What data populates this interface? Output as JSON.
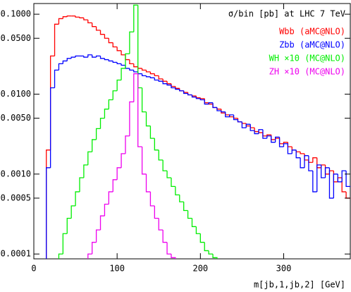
{
  "chart_data": {
    "type": "histogram",
    "title": "σ/bin [pb]  at LHC 7 TeV",
    "x_label": "m[jb,1,jb,2] [GeV]",
    "log_y": true,
    "xlim": [
      0,
      380
    ],
    "ylim": [
      8.7e-05,
      0.136
    ],
    "xticks": [
      0,
      100,
      200,
      300
    ],
    "yticks": [
      0.0001,
      0.0005,
      {
        "value": 0.001,
        "label": "0.0010"
      },
      {
        "value": 0.005,
        "label": "0.0050"
      },
      {
        "value": 0.01,
        "label": "0.0100"
      },
      {
        "value": 0.05,
        "label": "0.0500"
      },
      {
        "value": 0.1,
        "label": "0.1000"
      }
    ],
    "bins": [
      0,
      5,
      10,
      15,
      20,
      25,
      30,
      35,
      40,
      45,
      50,
      55,
      60,
      65,
      70,
      75,
      80,
      85,
      90,
      95,
      100,
      105,
      110,
      115,
      120,
      125,
      130,
      135,
      140,
      145,
      150,
      155,
      160,
      165,
      170,
      175,
      180,
      185,
      190,
      195,
      200,
      205,
      210,
      215,
      220,
      225,
      230,
      235,
      240,
      245,
      250,
      255,
      260,
      265,
      270,
      275,
      280,
      285,
      290,
      295,
      300,
      305,
      310,
      315,
      320,
      325,
      330,
      335,
      340,
      345,
      350,
      355,
      360,
      365,
      370,
      375,
      380
    ],
    "series": [
      {
        "name": "Wbb (aMC@NLO)",
        "color": "#ff0000",
        "values": [
          null,
          null,
          null,
          0.002,
          0.03,
          0.075,
          0.088,
          0.093,
          0.095,
          0.095,
          0.092,
          0.09,
          0.085,
          0.078,
          0.07,
          0.063,
          0.056,
          0.05,
          0.044,
          0.039,
          0.035,
          0.031,
          0.027,
          0.024,
          0.022,
          0.021,
          0.02,
          0.019,
          0.018,
          0.017,
          0.0155,
          0.0145,
          0.0135,
          0.0125,
          0.0118,
          0.011,
          0.0105,
          0.0098,
          0.0095,
          0.009,
          0.0088,
          0.0078,
          0.0075,
          0.0068,
          0.0065,
          0.0058,
          0.0055,
          0.0052,
          0.005,
          0.0045,
          0.0043,
          0.004,
          0.0038,
          0.0034,
          0.0033,
          0.003,
          0.0031,
          0.0027,
          0.0028,
          0.0024,
          0.0025,
          0.0022,
          0.002,
          0.0019,
          0.0018,
          0.0015,
          0.0014,
          0.0016,
          0.0012,
          0.0013,
          0.001,
          0.0011,
          0.0008,
          0.0009,
          0.0006,
          0.0005
        ]
      },
      {
        "name": "Zbb (aMC@NLO)",
        "color": "#0000ff",
        "values": [
          null,
          null,
          null,
          0.0012,
          0.012,
          0.02,
          0.024,
          0.026,
          0.028,
          0.029,
          0.03,
          0.03,
          0.029,
          0.031,
          0.029,
          0.03,
          0.028,
          0.027,
          0.026,
          0.025,
          0.024,
          0.023,
          0.021,
          0.02,
          0.019,
          0.018,
          0.017,
          0.0165,
          0.016,
          0.015,
          0.0145,
          0.0135,
          0.013,
          0.012,
          0.0115,
          0.011,
          0.0102,
          0.0098,
          0.0092,
          0.0088,
          0.0085,
          0.0075,
          0.0078,
          0.0068,
          0.0062,
          0.006,
          0.0052,
          0.0055,
          0.0048,
          0.0045,
          0.0038,
          0.0042,
          0.0035,
          0.0032,
          0.0036,
          0.0028,
          0.003,
          0.0025,
          0.0029,
          0.0022,
          0.0024,
          0.0018,
          0.002,
          0.0016,
          0.0012,
          0.0017,
          0.0011,
          0.0006,
          0.0013,
          0.0009,
          0.0012,
          0.0005,
          0.001,
          0.0008,
          0.0011,
          0.0007
        ]
      },
      {
        "name": "WH ×10 (MC@NLO)",
        "color": "#00ee00",
        "values": [
          null,
          null,
          null,
          null,
          null,
          null,
          0.0001,
          0.00018,
          0.00028,
          0.0004,
          0.0006,
          0.0009,
          0.0013,
          0.0019,
          0.0027,
          0.0037,
          0.005,
          0.0065,
          0.0085,
          0.011,
          0.015,
          0.021,
          0.032,
          0.06,
          0.13,
          0.012,
          0.006,
          0.004,
          0.0028,
          0.002,
          0.0015,
          0.0011,
          0.0009,
          0.0007,
          0.00055,
          0.00045,
          0.00035,
          0.00028,
          0.00022,
          0.00018,
          0.00014,
          0.00011,
          0.0001,
          9e-05,
          null,
          null,
          null,
          null,
          null,
          null,
          null,
          null,
          null,
          null,
          null,
          null,
          null,
          null,
          null,
          null,
          null,
          null,
          null,
          null,
          null,
          null,
          null,
          null,
          null,
          null,
          null,
          null,
          null,
          null,
          null,
          null
        ]
      },
      {
        "name": "ZH ×10 (MC@NLO)",
        "color": "#ee00ee",
        "values": [
          null,
          null,
          null,
          null,
          null,
          null,
          null,
          null,
          null,
          null,
          null,
          null,
          null,
          0.0001,
          0.00014,
          0.0002,
          0.0003,
          0.00042,
          0.0006,
          0.00085,
          0.0012,
          0.0018,
          0.003,
          0.008,
          0.018,
          0.0022,
          0.001,
          0.0006,
          0.0004,
          0.00028,
          0.0002,
          0.00014,
          0.0001,
          9e-05,
          null,
          null,
          null,
          null,
          null,
          null,
          null,
          null,
          null,
          null,
          null,
          null,
          null,
          null,
          null,
          null,
          null,
          null,
          null,
          null,
          null,
          null,
          null,
          null,
          null,
          null,
          null,
          null,
          null,
          null,
          null,
          null,
          null,
          null,
          null,
          null,
          null,
          null,
          null,
          null,
          null,
          null
        ]
      }
    ]
  }
}
